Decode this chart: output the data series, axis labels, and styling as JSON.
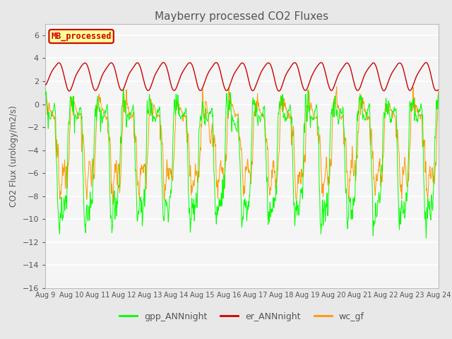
{
  "title": "Mayberry processed CO2 Fluxes",
  "ylabel": "CO2 Flux (urology/m2/s)",
  "ylim": [
    -16,
    7
  ],
  "yticks": [
    6,
    4,
    2,
    0,
    -2,
    -4,
    -6,
    -8,
    -10,
    -12,
    -14,
    -16
  ],
  "xlabel_dates": [
    "Aug 9",
    "Aug 10",
    "Aug 11",
    "Aug 12",
    "Aug 13",
    "Aug 14",
    "Aug 15",
    "Aug 16",
    "Aug 17",
    "Aug 18",
    "Aug 19",
    "Aug 20",
    "Aug 21",
    "Aug 22",
    "Aug 23",
    "Aug 24"
  ],
  "title_color": "#555555",
  "legend_label": "MB_processed",
  "legend_box_color": "#ffff99",
  "legend_box_edge": "#cc0000",
  "line_colors": {
    "gpp": "#00ff00",
    "er": "#cc0000",
    "wc": "#ff9900"
  },
  "legend_entries": [
    {
      "label": "gpp_ANNnight",
      "color": "#00ff00"
    },
    {
      "label": "er_ANNnight",
      "color": "#cc0000"
    },
    {
      "label": "wc_gf",
      "color": "#ff9900"
    }
  ],
  "bg_color": "#e8e8e8",
  "plot_bg_color": "#e8e8e8",
  "plot_inner_color": "#f5f5f5",
  "n_days": 15,
  "points_per_day": 288,
  "seed": 12345
}
